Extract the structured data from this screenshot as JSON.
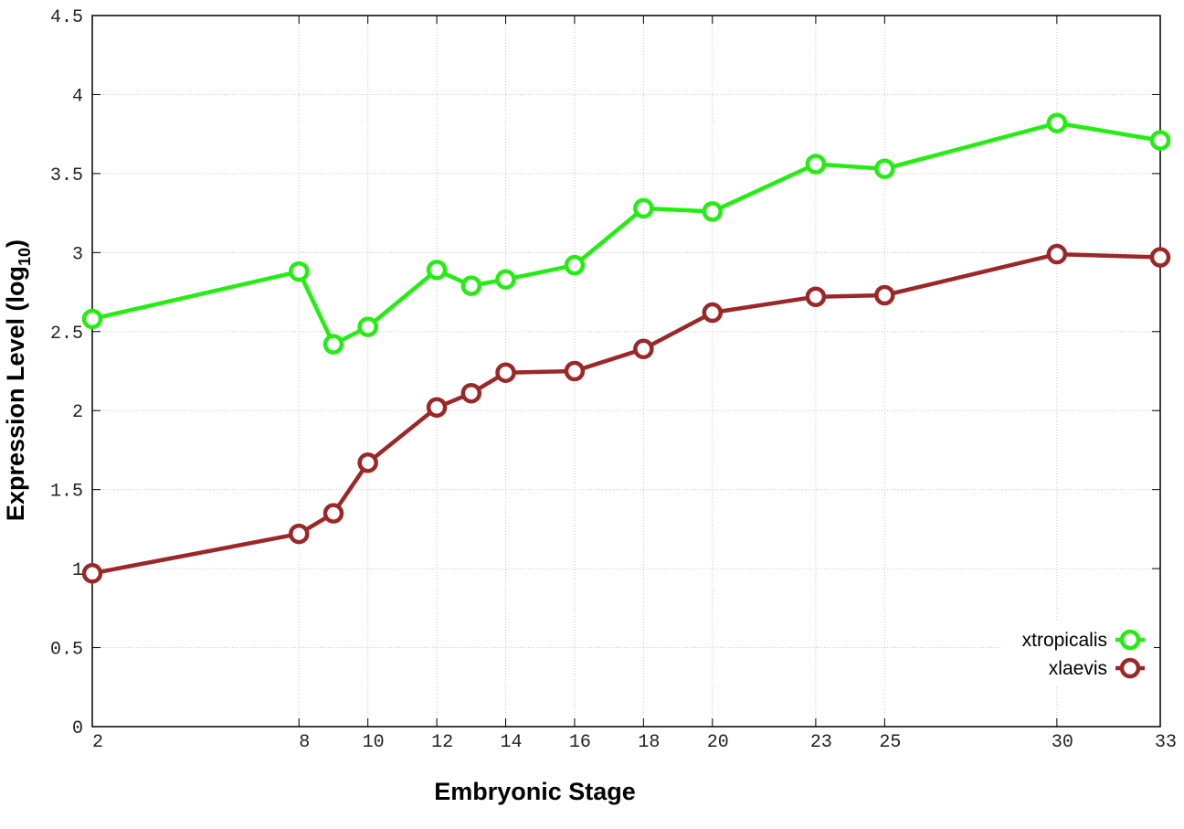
{
  "chart_data": {
    "type": "line",
    "xlabel": "Embryonic Stage",
    "ylabel": "Expression Level (log",
    "ylabel_sub": "10",
    "ylabel_close": ")",
    "xlim": [
      2,
      33
    ],
    "ylim": [
      0,
      4.5
    ],
    "xticks": [
      2,
      8,
      10,
      12,
      14,
      16,
      18,
      20,
      23,
      25,
      30,
      33
    ],
    "yticks": [
      0,
      0.5,
      1,
      1.5,
      2,
      2.5,
      3,
      3.5,
      4,
      4.5
    ],
    "ytick_labels": [
      "0",
      "0.5",
      "1",
      "1.5",
      "2",
      "2.5",
      "3",
      "3.5",
      "4",
      "4.5"
    ],
    "grid": true,
    "legend_position": "bottom-right",
    "x": [
      2,
      8,
      9,
      10,
      12,
      13,
      14,
      16,
      18,
      20,
      23,
      25,
      30,
      33
    ],
    "series": [
      {
        "name": "xtropicalis",
        "color": "#22ee11",
        "values": [
          2.58,
          2.88,
          2.42,
          2.53,
          2.89,
          2.79,
          2.83,
          2.92,
          3.28,
          3.26,
          3.56,
          3.53,
          3.82,
          3.71
        ]
      },
      {
        "name": "xlaevis",
        "color": "#9b2828",
        "values": [
          0.97,
          1.22,
          1.35,
          1.67,
          2.02,
          2.11,
          2.24,
          2.25,
          2.39,
          2.62,
          2.72,
          2.73,
          2.99,
          2.97
        ]
      }
    ]
  }
}
